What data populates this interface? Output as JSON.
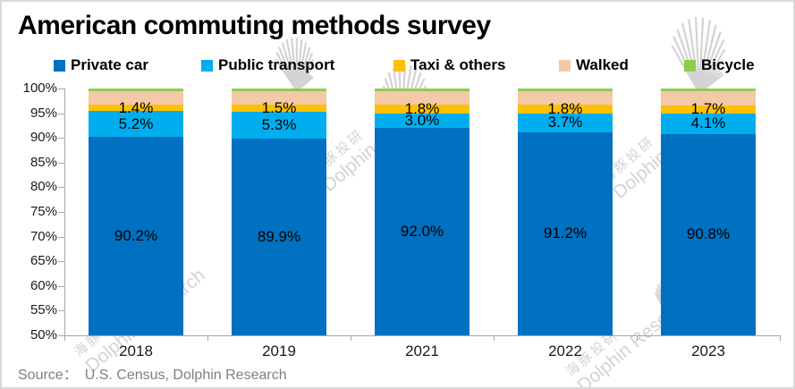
{
  "title": "American commuting methods survey",
  "source": {
    "prefix": "Source：",
    "text": "U.S. Census, Dolphin Research"
  },
  "watermark": {
    "cn": "海豚投研",
    "en": "Dolphin Research"
  },
  "colors": {
    "axis": "#a6a6a6",
    "label_text": "#000000",
    "source_text": "#7f7f7f",
    "watermark": "#cccccc",
    "frame_border": "#d9d9d9",
    "background": "#ffffff"
  },
  "chart_data": {
    "type": "bar",
    "stacked": true,
    "title": "American commuting methods survey",
    "categories": [
      "2018",
      "2019",
      "2021",
      "2022",
      "2023"
    ],
    "series": [
      {
        "name": "Private car",
        "color": "#0070C0",
        "values": [
          90.2,
          89.9,
          92.0,
          91.2,
          90.8
        ],
        "data_labels": [
          "90.2%",
          "89.9%",
          "92.0%",
          "91.2%",
          "90.8%"
        ]
      },
      {
        "name": "Public transport",
        "color": "#00AEEF",
        "values": [
          5.2,
          5.3,
          3.0,
          3.7,
          4.1
        ],
        "data_labels": [
          "5.2%",
          "5.3%",
          "3.0%",
          "3.7%",
          "4.1%"
        ]
      },
      {
        "name": "Taxi & others",
        "color": "#FFC000",
        "values": [
          1.4,
          1.5,
          1.8,
          1.8,
          1.7
        ],
        "data_labels": [
          "1.4%",
          "1.5%",
          "1.8%",
          "1.8%",
          "1.7%"
        ]
      },
      {
        "name": "Walked",
        "color": "#F3C9A8",
        "values": [
          2.7,
          2.7,
          2.6,
          2.7,
          2.8
        ],
        "data_labels": null
      },
      {
        "name": "Bicycle",
        "color": "#92CC4E",
        "values": [
          0.5,
          0.6,
          0.6,
          0.6,
          0.6
        ],
        "data_labels": null
      }
    ],
    "ylim": [
      50,
      100
    ],
    "ytick_step": 5,
    "ytick_labels": [
      "100%",
      "95%",
      "90%",
      "85%",
      "80%",
      "75%",
      "70%",
      "65%",
      "60%",
      "55%",
      "50%"
    ],
    "xlabel": "",
    "ylabel": "",
    "legend_position": "top",
    "grid": false
  }
}
